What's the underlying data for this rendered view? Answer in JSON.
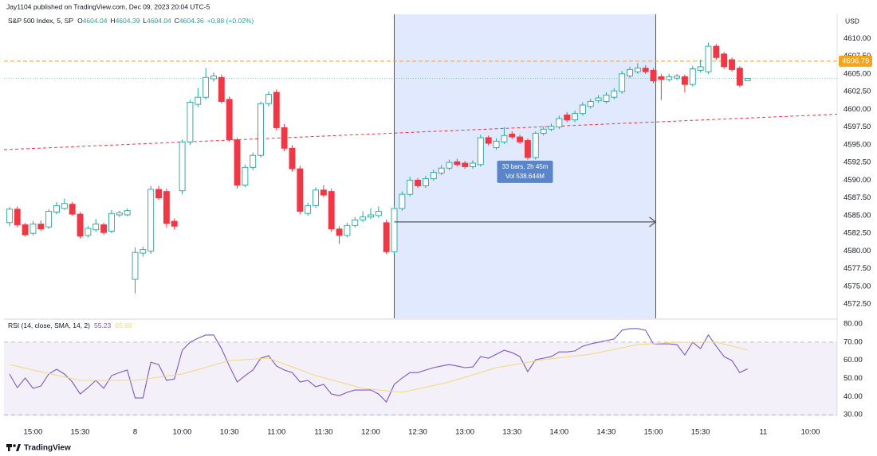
{
  "header": {
    "publisher": "Jay1104 published on TradingView.com, Dec 09, 2023 20:04 UTC-5",
    "currency": "USD",
    "brand": "TradingView"
  },
  "chart_data": [
    {
      "type": "candlestick",
      "title": "S&P 500 Index, 5, SP",
      "ohlc_keys": [
        "O",
        "H",
        "L",
        "C"
      ],
      "change": "+0.88 (+0.02%)",
      "open": [
        4584.0,
        4585.9,
        4583.7,
        4582.5,
        4583.8,
        4583.4,
        4585.5,
        4586.0,
        4586.6,
        4585.2,
        4582.2,
        4583.0,
        4583.7,
        4582.8,
        4585.1,
        4585.1,
        4576.0,
        4579.7,
        4580.0,
        4588.7,
        4588.4,
        4584.2,
        4588.5,
        4595.4,
        4600.7,
        4601.7,
        4604.3,
        4604.5,
        4601.4,
        4595.7,
        4589.3,
        4591.8,
        4593.5,
        4600.8,
        4602.4,
        4597.4,
        4594.5,
        4591.6,
        4585.3,
        4586.4,
        4588.6,
        4588.4,
        4583.1,
        4582.2,
        4583.6,
        4584.4,
        4584.8,
        4585.0,
        4584.0,
        4579.9,
        4586.0,
        4588.0,
        4590.0,
        4589.2,
        4590.2,
        4591.0,
        4591.7,
        4592.6,
        4592.4,
        4591.9,
        4592.2,
        4596.0,
        4594.6,
        4595.4,
        4596.5,
        4596.1,
        4595.6,
        4593.2,
        4596.6,
        4597.2,
        4597.5,
        4599.2,
        4598.5,
        4599.4,
        4600.4,
        4601.2,
        4601.1,
        4601.7,
        4602.5,
        4604.7,
        4605.3,
        4605.8,
        4605.5,
        4604.6,
        4604.2,
        4604.4,
        4604.6,
        4603.5,
        4605.5,
        4605.3,
        4608.9,
        4607.8,
        4607.0,
        4605.8,
        4604.04
      ],
      "high": [
        4586.2,
        4586.3,
        4584.0,
        4584.2,
        4584.3,
        4585.9,
        4586.9,
        4587.4,
        4586.9,
        4585.5,
        4583.5,
        4584.5,
        4584.0,
        4585.8,
        4585.7,
        4586.0,
        4580.5,
        4580.6,
        4589.2,
        4589.2,
        4588.8,
        4584.6,
        4595.7,
        4601.3,
        4603.0,
        4605.8,
        4605.2,
        4604.9,
        4601.8,
        4596.0,
        4592.2,
        4593.9,
        4601.1,
        4602.5,
        4602.8,
        4597.9,
        4594.9,
        4592.0,
        4586.8,
        4589.0,
        4589.3,
        4588.8,
        4583.5,
        4584.0,
        4584.8,
        4585.6,
        4586.0,
        4586.3,
        4584.4,
        4586.4,
        4588.4,
        4590.5,
        4590.3,
        4590.6,
        4591.5,
        4592.1,
        4592.9,
        4593.0,
        4592.7,
        4592.8,
        4596.4,
        4596.3,
        4595.9,
        4597.5,
        4596.9,
        4596.4,
        4595.9,
        4596.9,
        4597.6,
        4598.0,
        4599.1,
        4599.6,
        4599.8,
        4601.0,
        4601.5,
        4602.0,
        4602.4,
        4603.0,
        4605.4,
        4606.0,
        4606.5,
        4606.2,
        4605.8,
        4605.0,
        4605.0,
        4605.0,
        4604.9,
        4606.1,
        4607.0,
        4609.4,
        4609.2,
        4608.1,
        4607.3,
        4606.1,
        4604.39
      ],
      "low": [
        4583.5,
        4583.3,
        4582.0,
        4582.2,
        4582.8,
        4583.1,
        4585.2,
        4585.8,
        4585.0,
        4581.8,
        4581.9,
        4582.7,
        4582.3,
        4582.5,
        4584.8,
        4584.9,
        4574.0,
        4579.2,
        4579.6,
        4587.2,
        4583.3,
        4583.0,
        4588.0,
        4595.0,
        4600.3,
        4601.4,
        4603.9,
        4600.8,
        4595.4,
        4588.8,
        4589.0,
        4591.4,
        4593.2,
        4600.4,
        4597.0,
        4594.1,
        4591.2,
        4585.2,
        4585.0,
        4586.1,
        4587.6,
        4582.7,
        4581.0,
        4581.9,
        4583.3,
        4584.1,
        4584.5,
        4584.7,
        4579.6,
        4579.6,
        4585.7,
        4587.7,
        4588.9,
        4588.9,
        4589.9,
        4590.7,
        4591.4,
        4591.9,
        4591.6,
        4591.6,
        4591.9,
        4594.9,
        4594.3,
        4595.1,
        4595.8,
        4595.1,
        4592.9,
        4592.9,
        4596.3,
        4596.9,
        4597.2,
        4598.2,
        4598.2,
        4599.1,
        4600.1,
        4600.9,
        4600.8,
        4601.4,
        4602.2,
        4604.4,
        4605.0,
        4605.0,
        4603.7,
        4601.3,
        4603.9,
        4604.1,
        4602.4,
        4603.2,
        4605.2,
        4605.0,
        4607.0,
        4605.7,
        4605.3,
        4603.1,
        4604.04
      ],
      "close": [
        4585.9,
        4583.7,
        4582.3,
        4583.8,
        4583.1,
        4585.6,
        4586.4,
        4586.7,
        4585.2,
        4582.1,
        4583.2,
        4583.8,
        4582.6,
        4585.3,
        4585.4,
        4585.7,
        4579.8,
        4580.2,
        4588.7,
        4587.5,
        4583.9,
        4583.5,
        4595.4,
        4601.0,
        4601.7,
        4604.5,
        4604.7,
        4601.1,
        4595.7,
        4589.3,
        4591.8,
        4593.5,
        4600.8,
        4602.1,
        4597.4,
        4594.5,
        4591.6,
        4585.6,
        4586.4,
        4588.6,
        4587.9,
        4583.1,
        4582.2,
        4583.6,
        4584.4,
        4584.8,
        4585.1,
        4585.6,
        4579.9,
        4586.0,
        4588.0,
        4590.0,
        4589.2,
        4590.2,
        4591.1,
        4591.7,
        4592.5,
        4592.2,
        4591.9,
        4592.4,
        4596.0,
        4595.2,
        4595.5,
        4596.3,
        4596.1,
        4595.4,
        4593.2,
        4596.6,
        4597.2,
        4597.6,
        4598.7,
        4598.5,
        4599.4,
        4600.6,
        4601.1,
        4601.6,
        4602.0,
        4602.6,
        4605.0,
        4605.6,
        4605.8,
        4605.3,
        4604.0,
        4604.2,
        4604.6,
        4604.7,
        4603.5,
        4605.7,
        4606.0,
        4608.9,
        4607.3,
        4606.0,
        4605.6,
        4603.4,
        4604.36
      ],
      "up_color": "#26a69a",
      "down_color": "#f23645",
      "xlim": [
        -0.7,
        105.4
      ],
      "xticks": [
        {
          "value": 3,
          "label": "15:00"
        },
        {
          "value": 9,
          "label": "15:30"
        },
        {
          "value": 16,
          "label": "8"
        },
        {
          "value": 22,
          "label": "10:00"
        },
        {
          "value": 28,
          "label": "10:30"
        },
        {
          "value": 34,
          "label": "11:00"
        },
        {
          "value": 40,
          "label": "11:30"
        },
        {
          "value": 46,
          "label": "12:00"
        },
        {
          "value": 52,
          "label": "12:30"
        },
        {
          "value": 58,
          "label": "13:00"
        },
        {
          "value": 64,
          "label": "13:30"
        },
        {
          "value": 70,
          "label": "14:00"
        },
        {
          "value": 76,
          "label": "14:30"
        },
        {
          "value": 82,
          "label": "15:00"
        },
        {
          "value": 88,
          "label": "15:30"
        },
        {
          "value": 96,
          "label": "11"
        },
        {
          "value": 102,
          "label": "10:00"
        }
      ],
      "ylim": [
        4570.5,
        4613.4
      ],
      "yticks": [
        {
          "value": 4572.5,
          "label": "4572.50"
        },
        {
          "value": 4575,
          "label": "4575.00"
        },
        {
          "value": 4577.5,
          "label": "4577.50"
        },
        {
          "value": 4580,
          "label": "4580.00"
        },
        {
          "value": 4582.5,
          "label": "4582.50"
        },
        {
          "value": 4585,
          "label": "4585.00"
        },
        {
          "value": 4587.5,
          "label": "4587.50"
        },
        {
          "value": 4590,
          "label": "4590.00"
        },
        {
          "value": 4592.5,
          "label": "4592.50"
        },
        {
          "value": 4595,
          "label": "4595.00"
        },
        {
          "value": 4597.5,
          "label": "4597.50"
        },
        {
          "value": 4600,
          "label": "4600.00"
        },
        {
          "value": 4602.5,
          "label": "4602.50"
        },
        {
          "value": 4605,
          "label": "4605.00"
        },
        {
          "value": 4607.5,
          "label": "4607.50"
        },
        {
          "value": 4610,
          "label": "4610.00"
        }
      ],
      "hline": {
        "value": 4606.79,
        "color": "#f7a21b"
      },
      "trendline": {
        "x": [
          -0.7,
          105.4
        ],
        "values": [
          4594.3,
          4599.3
        ],
        "color": "#f23645"
      },
      "measure": {
        "x": [
          49,
          82.3
        ],
        "y": 4584.1,
        "label": "33 bars, 2h 45m",
        "volume": "Vol 538.644M"
      },
      "grid": false
    },
    {
      "type": "line",
      "title": "RSI (14, close, SMA, 14, 2)",
      "ylim": [
        29.6,
        82.2
      ],
      "yticks": [
        {
          "value": 30,
          "label": "30.00"
        },
        {
          "value": 40,
          "label": "40.00"
        },
        {
          "value": 50,
          "label": "50.00"
        },
        {
          "value": 60,
          "label": "60.00"
        },
        {
          "value": 70,
          "label": "70.00"
        },
        {
          "value": 80,
          "label": "80.00"
        }
      ],
      "band": [
        30,
        70
      ],
      "band_color": "#7e57c2",
      "series": [
        {
          "color": "#7e57c2",
          "values": [
            52.4,
            44.9,
            50.2,
            44.5,
            45.8,
            52.4,
            55.0,
            52.4,
            48.0,
            41.4,
            44.9,
            48.9,
            44.5,
            51.5,
            53.2,
            54.6,
            39.2,
            39.2,
            58.9,
            57.6,
            48.9,
            49.7,
            65.5,
            69.9,
            72.1,
            73.9,
            73.9,
            66.4,
            56.8,
            48.0,
            51.5,
            54.6,
            61.1,
            62.5,
            56.8,
            54.6,
            53.2,
            48.0,
            48.9,
            45.4,
            46.7,
            41.4,
            40.5,
            42.3,
            43.6,
            43.6,
            43.6,
            41.4,
            37.0,
            46.7,
            50.2,
            53.2,
            53.2,
            54.6,
            55.9,
            56.8,
            57.6,
            56.8,
            55.9,
            56.3,
            62.0,
            61.1,
            63.3,
            65.5,
            64.2,
            62.0,
            53.7,
            60.3,
            61.1,
            62.0,
            64.6,
            64.6,
            65.1,
            67.7,
            69.0,
            69.9,
            70.8,
            71.7,
            76.5,
            77.4,
            77.4,
            76.5,
            69.0,
            69.0,
            69.0,
            68.6,
            62.9,
            69.9,
            66.4,
            73.9,
            67.7,
            62.0,
            59.8,
            53.2,
            55.23
          ]
        },
        {
          "color": "#f5d77a",
          "x": [
            0,
            3,
            9,
            16,
            22,
            28,
            33,
            39,
            45,
            50,
            56,
            62,
            68,
            74,
            80,
            85,
            90,
            94
          ],
          "values": [
            57.6,
            54.6,
            48.9,
            48.9,
            52.4,
            59.8,
            61.1,
            51.5,
            44.5,
            42.3,
            48.0,
            55.9,
            60.3,
            63.3,
            68.6,
            69.9,
            69.9,
            65.66
          ]
        }
      ]
    }
  ]
}
